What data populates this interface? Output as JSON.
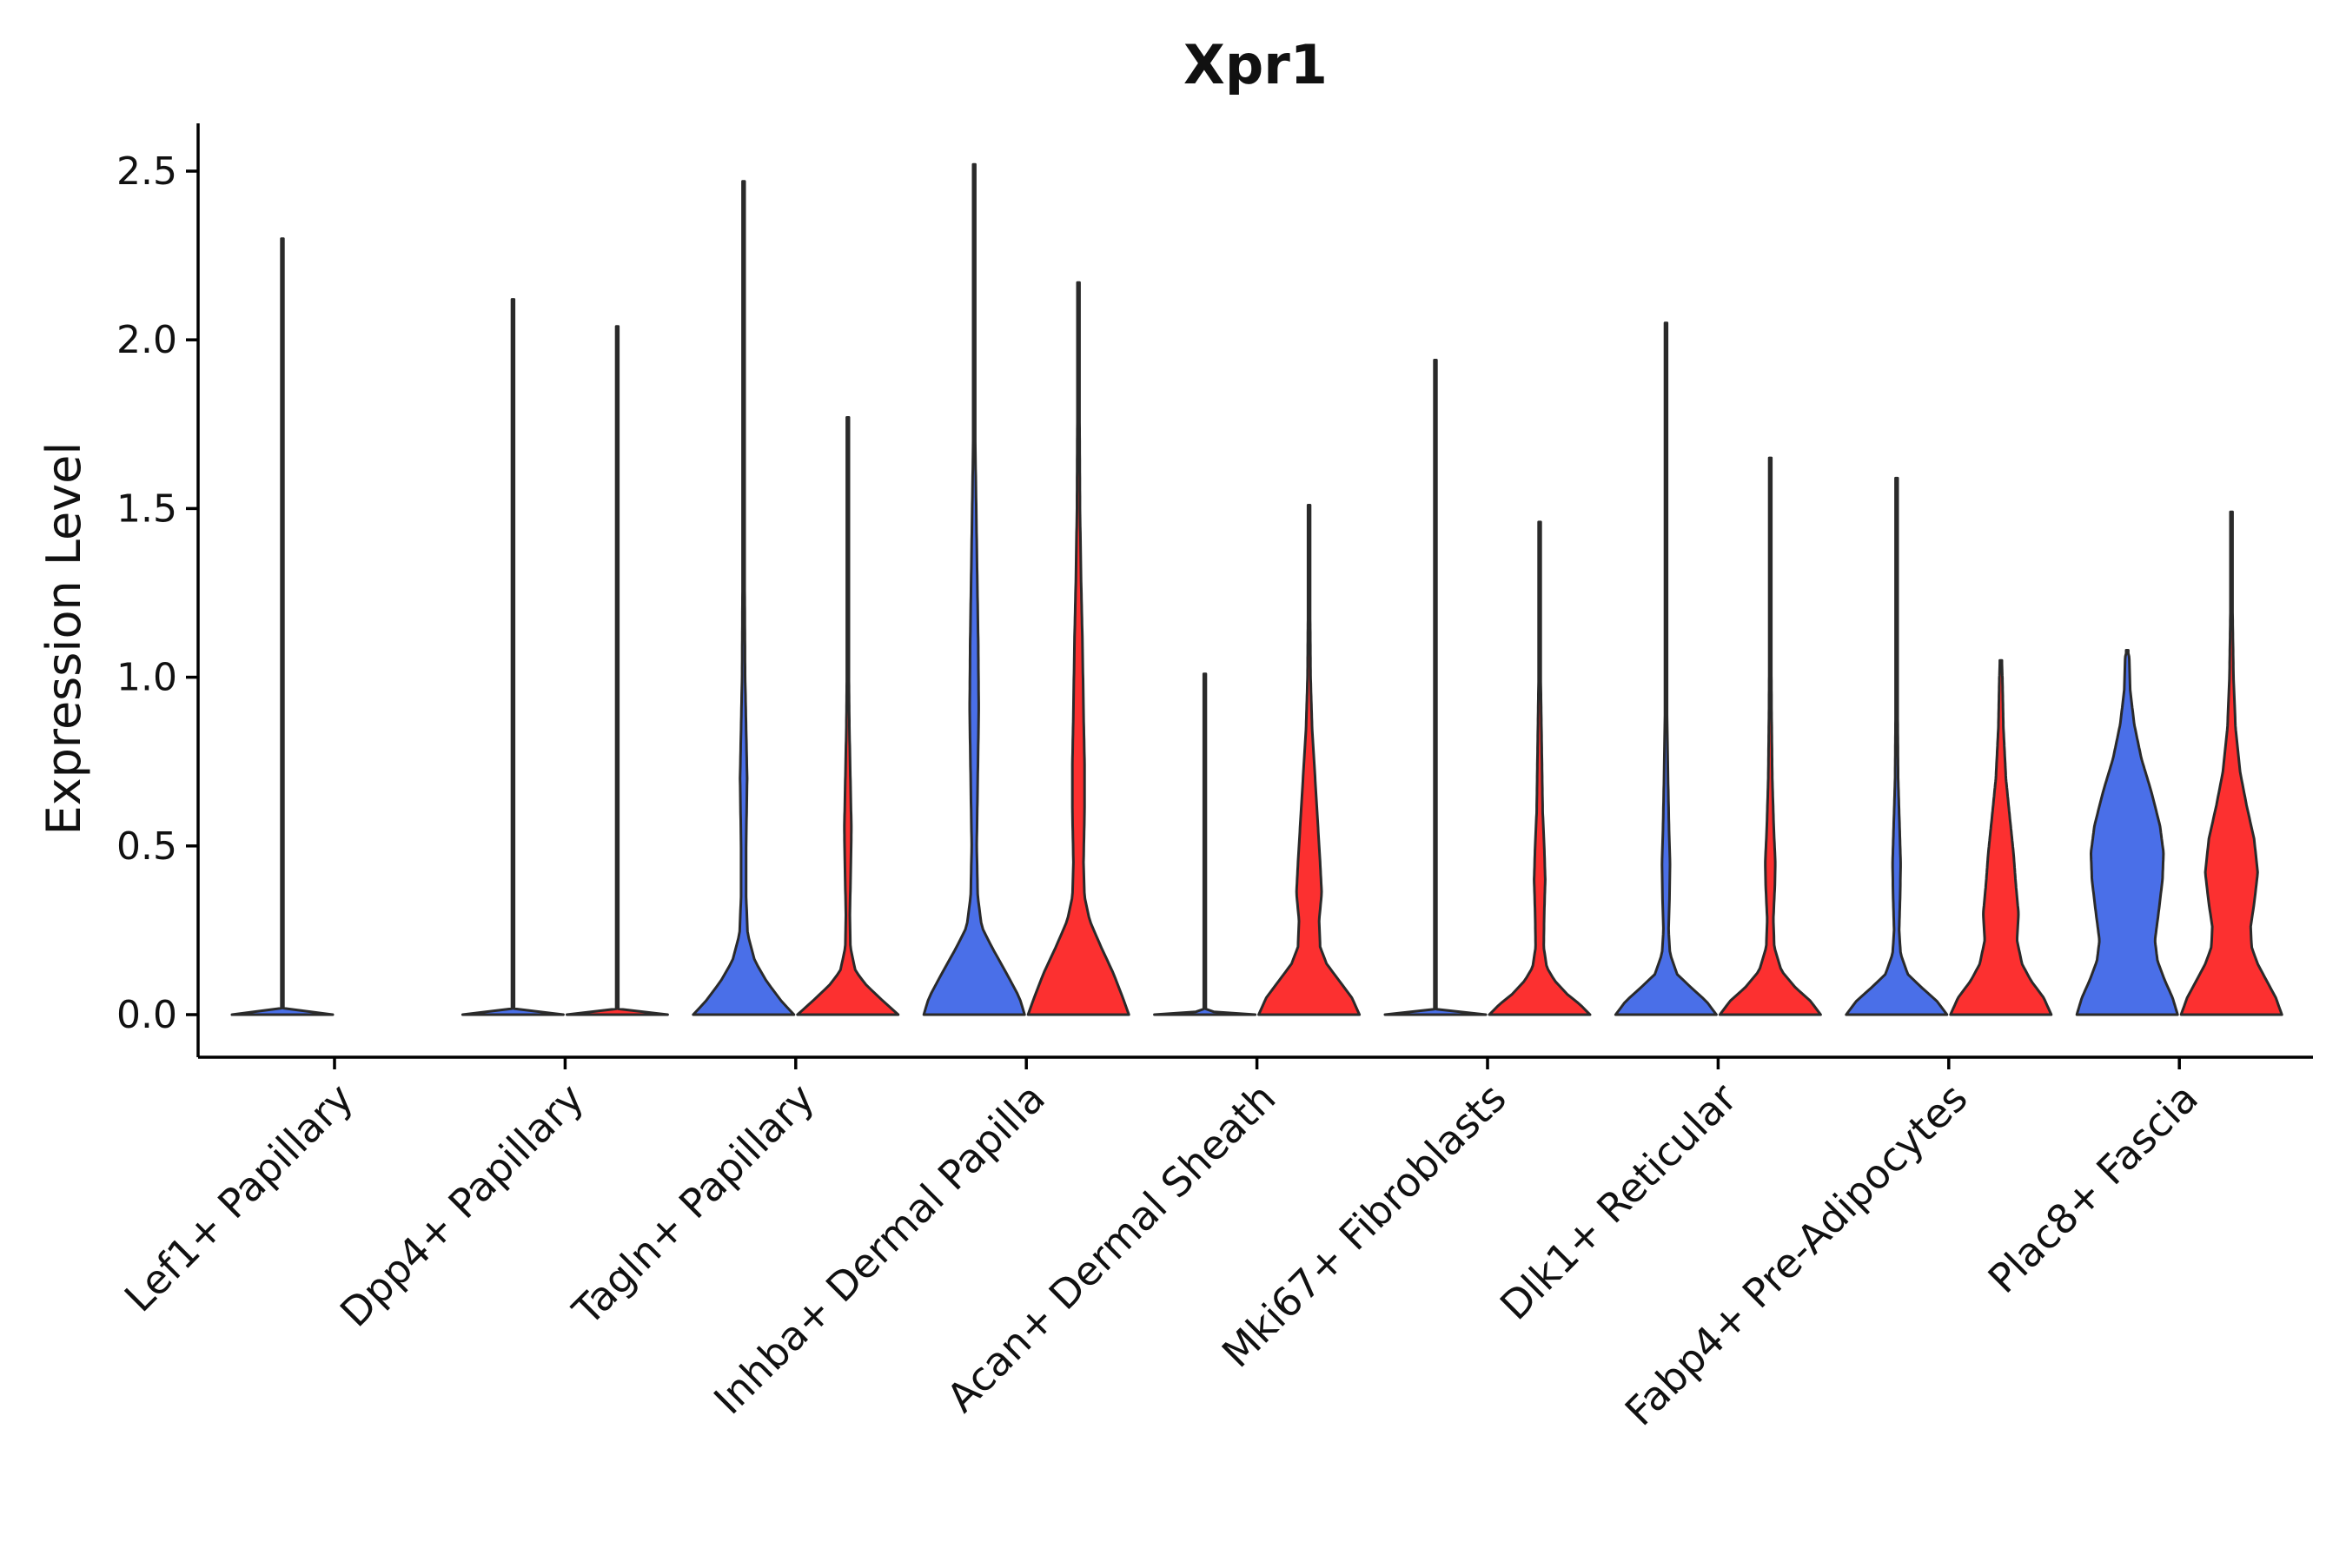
{
  "chart_data": {
    "type": "violin",
    "title": "Xpr1",
    "xlabel": "",
    "ylabel": "Expression Level",
    "ylim": [
      -0.12,
      2.65
    ],
    "yticks": [
      "0.0",
      "0.5",
      "1.0",
      "1.5",
      "2.0",
      "2.5"
    ],
    "grid": false,
    "legend": "none",
    "colors": {
      "group1": "#4a6fe8",
      "group2": "#fc3030"
    },
    "series": [
      {
        "name": "group1",
        "color": "#4a6fe8"
      },
      {
        "name": "group2",
        "color": "#fc3030"
      }
    ],
    "categories": [
      "Lef1+ Papillary",
      "Dpp4+ Papillary",
      "Tagln+ Papillary",
      "Inhba+ Dermal Papilla",
      "Acan+ Dermal Sheath",
      "Mki67+ Fibroblasts",
      "Dlk1+ Reticular",
      "Fabp4+ Pre-Adipocytes",
      "Plac8+ Fascia"
    ],
    "violins": [
      {
        "category": "Lef1+ Papillary",
        "group": "group1",
        "max": 2.3,
        "profile": [
          [
            0,
            1.0
          ],
          [
            0.01,
            0.02
          ],
          [
            0.05,
            0.005
          ],
          [
            2.3,
            0.0
          ]
        ]
      },
      {
        "category": "Lef1+ Papillary",
        "group": "group2",
        "max": 0,
        "profile": []
      },
      {
        "category": "Dpp4+ Papillary",
        "group": "group1",
        "max": 2.12,
        "profile": [
          [
            0,
            1.0
          ],
          [
            0.01,
            0.02
          ],
          [
            0.05,
            0.005
          ],
          [
            2.12,
            0.0
          ]
        ]
      },
      {
        "category": "Dpp4+ Papillary",
        "group": "group2",
        "max": 2.04,
        "profile": [
          [
            0,
            1.0
          ],
          [
            0.01,
            0.02
          ],
          [
            0.05,
            0.005
          ],
          [
            2.04,
            0.0
          ]
        ]
      },
      {
        "category": "Tagln+ Papillary",
        "group": "group1",
        "max": 2.47,
        "profile": [
          [
            0,
            1.0
          ],
          [
            0.04,
            0.75
          ],
          [
            0.1,
            0.45
          ],
          [
            0.16,
            0.22
          ],
          [
            0.24,
            0.08
          ],
          [
            0.35,
            0.05
          ],
          [
            0.5,
            0.05
          ],
          [
            0.7,
            0.07
          ],
          [
            0.85,
            0.05
          ],
          [
            1.0,
            0.03
          ],
          [
            1.3,
            0.02
          ],
          [
            1.6,
            0.015
          ],
          [
            2.0,
            0.005
          ],
          [
            2.47,
            0.0
          ]
        ]
      },
      {
        "category": "Tagln+ Papillary",
        "group": "group2",
        "max": 1.77,
        "profile": [
          [
            0,
            1.0
          ],
          [
            0.04,
            0.7
          ],
          [
            0.09,
            0.35
          ],
          [
            0.13,
            0.15
          ],
          [
            0.2,
            0.05
          ],
          [
            0.3,
            0.04
          ],
          [
            0.45,
            0.06
          ],
          [
            0.55,
            0.07
          ],
          [
            0.7,
            0.05
          ],
          [
            0.85,
            0.03
          ],
          [
            1.0,
            0.02
          ],
          [
            1.3,
            0.015
          ],
          [
            1.77,
            0.0
          ]
        ]
      },
      {
        "category": "Inhba+ Dermal Papilla",
        "group": "group1",
        "max": 2.52,
        "profile": [
          [
            0,
            1.0
          ],
          [
            0.05,
            0.9
          ],
          [
            0.12,
            0.65
          ],
          [
            0.2,
            0.35
          ],
          [
            0.26,
            0.15
          ],
          [
            0.35,
            0.07
          ],
          [
            0.5,
            0.05
          ],
          [
            0.7,
            0.07
          ],
          [
            0.9,
            0.09
          ],
          [
            1.1,
            0.08
          ],
          [
            1.3,
            0.06
          ],
          [
            1.5,
            0.04
          ],
          [
            1.7,
            0.02
          ],
          [
            2.0,
            0.01
          ],
          [
            2.52,
            0.0
          ]
        ]
      },
      {
        "category": "Inhba+ Dermal Papilla",
        "group": "group2",
        "max": 2.17,
        "profile": [
          [
            0,
            1.0
          ],
          [
            0.05,
            0.88
          ],
          [
            0.12,
            0.7
          ],
          [
            0.2,
            0.45
          ],
          [
            0.28,
            0.22
          ],
          [
            0.35,
            0.12
          ],
          [
            0.45,
            0.1
          ],
          [
            0.6,
            0.12
          ],
          [
            0.75,
            0.12
          ],
          [
            0.9,
            0.1
          ],
          [
            1.1,
            0.08
          ],
          [
            1.3,
            0.05
          ],
          [
            1.5,
            0.03
          ],
          [
            1.8,
            0.02
          ],
          [
            2.17,
            0.0
          ]
        ]
      },
      {
        "category": "Acan+ Dermal Sheath",
        "group": "group1",
        "max": 1.01,
        "profile": [
          [
            0,
            1.0
          ],
          [
            0.01,
            0.02
          ],
          [
            0.05,
            0.005
          ],
          [
            1.01,
            0.0
          ]
        ]
      },
      {
        "category": "Acan+ Dermal Sheath",
        "group": "group2",
        "max": 1.51,
        "profile": [
          [
            0,
            1.0
          ],
          [
            0.05,
            0.85
          ],
          [
            0.1,
            0.6
          ],
          [
            0.15,
            0.35
          ],
          [
            0.2,
            0.22
          ],
          [
            0.28,
            0.2
          ],
          [
            0.36,
            0.25
          ],
          [
            0.45,
            0.22
          ],
          [
            0.55,
            0.18
          ],
          [
            0.7,
            0.12
          ],
          [
            0.85,
            0.06
          ],
          [
            1.0,
            0.03
          ],
          [
            1.2,
            0.02
          ],
          [
            1.51,
            0.0
          ]
        ]
      },
      {
        "category": "Mki67+ Fibroblasts",
        "group": "group1",
        "max": 1.94,
        "profile": [
          [
            0,
            1.0
          ],
          [
            0.01,
            0.02
          ],
          [
            0.05,
            0.005
          ],
          [
            1.94,
            0.0
          ]
        ]
      },
      {
        "category": "Mki67+ Fibroblasts",
        "group": "group2",
        "max": 1.46,
        "profile": [
          [
            0,
            1.0
          ],
          [
            0.03,
            0.8
          ],
          [
            0.06,
            0.55
          ],
          [
            0.1,
            0.3
          ],
          [
            0.14,
            0.14
          ],
          [
            0.2,
            0.08
          ],
          [
            0.3,
            0.09
          ],
          [
            0.4,
            0.11
          ],
          [
            0.5,
            0.09
          ],
          [
            0.6,
            0.06
          ],
          [
            0.8,
            0.04
          ],
          [
            1.0,
            0.02
          ],
          [
            1.46,
            0.0
          ]
        ]
      },
      {
        "category": "Dlk1+ Reticular",
        "group": "group1",
        "max": 2.05,
        "profile": [
          [
            0,
            1.0
          ],
          [
            0.04,
            0.8
          ],
          [
            0.08,
            0.5
          ],
          [
            0.12,
            0.22
          ],
          [
            0.18,
            0.08
          ],
          [
            0.25,
            0.05
          ],
          [
            0.35,
            0.07
          ],
          [
            0.45,
            0.08
          ],
          [
            0.55,
            0.06
          ],
          [
            0.7,
            0.04
          ],
          [
            0.9,
            0.02
          ],
          [
            1.2,
            0.015
          ],
          [
            1.6,
            0.01
          ],
          [
            2.05,
            0.0
          ]
        ]
      },
      {
        "category": "Dlk1+ Reticular",
        "group": "group2",
        "max": 1.65,
        "profile": [
          [
            0,
            1.0
          ],
          [
            0.04,
            0.8
          ],
          [
            0.08,
            0.5
          ],
          [
            0.13,
            0.22
          ],
          [
            0.2,
            0.08
          ],
          [
            0.28,
            0.06
          ],
          [
            0.38,
            0.09
          ],
          [
            0.45,
            0.1
          ],
          [
            0.55,
            0.07
          ],
          [
            0.7,
            0.04
          ],
          [
            0.9,
            0.025
          ],
          [
            1.2,
            0.015
          ],
          [
            1.65,
            0.0
          ]
        ]
      },
      {
        "category": "Fabp4+ Pre-Adipocytes",
        "group": "group1",
        "max": 1.59,
        "profile": [
          [
            0,
            1.0
          ],
          [
            0.04,
            0.8
          ],
          [
            0.08,
            0.5
          ],
          [
            0.12,
            0.22
          ],
          [
            0.18,
            0.08
          ],
          [
            0.25,
            0.05
          ],
          [
            0.35,
            0.07
          ],
          [
            0.45,
            0.08
          ],
          [
            0.55,
            0.06
          ],
          [
            0.7,
            0.03
          ],
          [
            0.9,
            0.02
          ],
          [
            1.2,
            0.01
          ],
          [
            1.59,
            0.0
          ]
        ]
      },
      {
        "category": "Fabp4+ Pre-Adipocytes",
        "group": "group2",
        "max": 1.05,
        "profile": [
          [
            0,
            1.0
          ],
          [
            0.05,
            0.85
          ],
          [
            0.1,
            0.6
          ],
          [
            0.15,
            0.42
          ],
          [
            0.22,
            0.32
          ],
          [
            0.3,
            0.35
          ],
          [
            0.38,
            0.3
          ],
          [
            0.48,
            0.25
          ],
          [
            0.58,
            0.18
          ],
          [
            0.7,
            0.1
          ],
          [
            0.85,
            0.05
          ],
          [
            1.0,
            0.03
          ],
          [
            1.04,
            0.02
          ],
          [
            1.05,
            0.0
          ]
        ]
      },
      {
        "category": "Plac8+ Fascia",
        "group": "group1",
        "max": 1.08,
        "profile": [
          [
            0,
            1.0
          ],
          [
            0.05,
            0.9
          ],
          [
            0.1,
            0.75
          ],
          [
            0.16,
            0.6
          ],
          [
            0.22,
            0.55
          ],
          [
            0.3,
            0.62
          ],
          [
            0.4,
            0.7
          ],
          [
            0.48,
            0.72
          ],
          [
            0.56,
            0.65
          ],
          [
            0.66,
            0.48
          ],
          [
            0.76,
            0.28
          ],
          [
            0.86,
            0.14
          ],
          [
            0.96,
            0.06
          ],
          [
            1.06,
            0.04
          ],
          [
            1.08,
            0.0
          ]
        ]
      },
      {
        "category": "Plac8+ Fascia",
        "group": "group2",
        "max": 1.49,
        "profile": [
          [
            0,
            1.0
          ],
          [
            0.05,
            0.88
          ],
          [
            0.1,
            0.7
          ],
          [
            0.15,
            0.52
          ],
          [
            0.2,
            0.4
          ],
          [
            0.26,
            0.38
          ],
          [
            0.33,
            0.45
          ],
          [
            0.42,
            0.52
          ],
          [
            0.52,
            0.45
          ],
          [
            0.62,
            0.3
          ],
          [
            0.72,
            0.17
          ],
          [
            0.85,
            0.08
          ],
          [
            1.0,
            0.04
          ],
          [
            1.2,
            0.02
          ],
          [
            1.49,
            0.0
          ]
        ]
      }
    ]
  }
}
